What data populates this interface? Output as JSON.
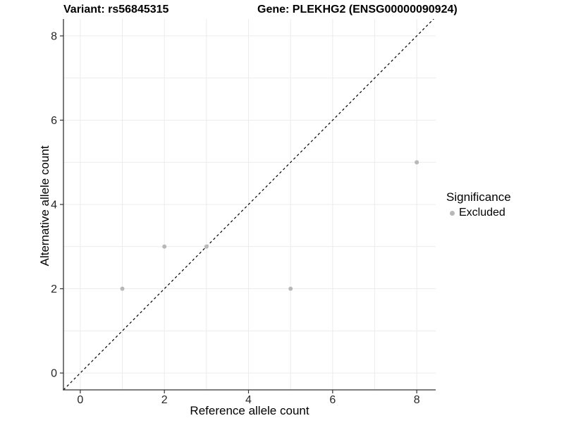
{
  "header": {
    "left_title": "Variant: rs56845315",
    "right_title": "Gene: PLEKHG2 (ENSG00000090924)"
  },
  "chart_data": {
    "type": "scatter",
    "xlabel": "Reference allele count",
    "ylabel": "Alternative allele count",
    "xlim": [
      -0.4,
      8.45
    ],
    "ylim": [
      -0.4,
      8.4
    ],
    "xticks": [
      0,
      2,
      4,
      6,
      8
    ],
    "yticks": [
      0,
      2,
      4,
      6,
      8
    ],
    "grid_positions": [
      0,
      1,
      2,
      3,
      4,
      5,
      6,
      7,
      8
    ],
    "grid": true,
    "reference_line": {
      "slope": 1,
      "intercept": 0,
      "style": "dashed",
      "color": "#000000"
    },
    "series": [
      {
        "name": "Excluded",
        "color": "#b8b8b8",
        "points": [
          [
            1,
            2
          ],
          [
            2,
            3
          ],
          [
            3,
            3
          ],
          [
            5,
            2
          ],
          [
            8,
            5
          ]
        ]
      }
    ],
    "legend": {
      "title": "Significance",
      "position": "right",
      "entries": [
        {
          "label": "Excluded",
          "color": "#b8b8b8"
        }
      ]
    },
    "colors": {
      "grid": "#ececec",
      "axis_line": "#333333",
      "tick_text": "#262626",
      "background": "#ffffff"
    }
  }
}
